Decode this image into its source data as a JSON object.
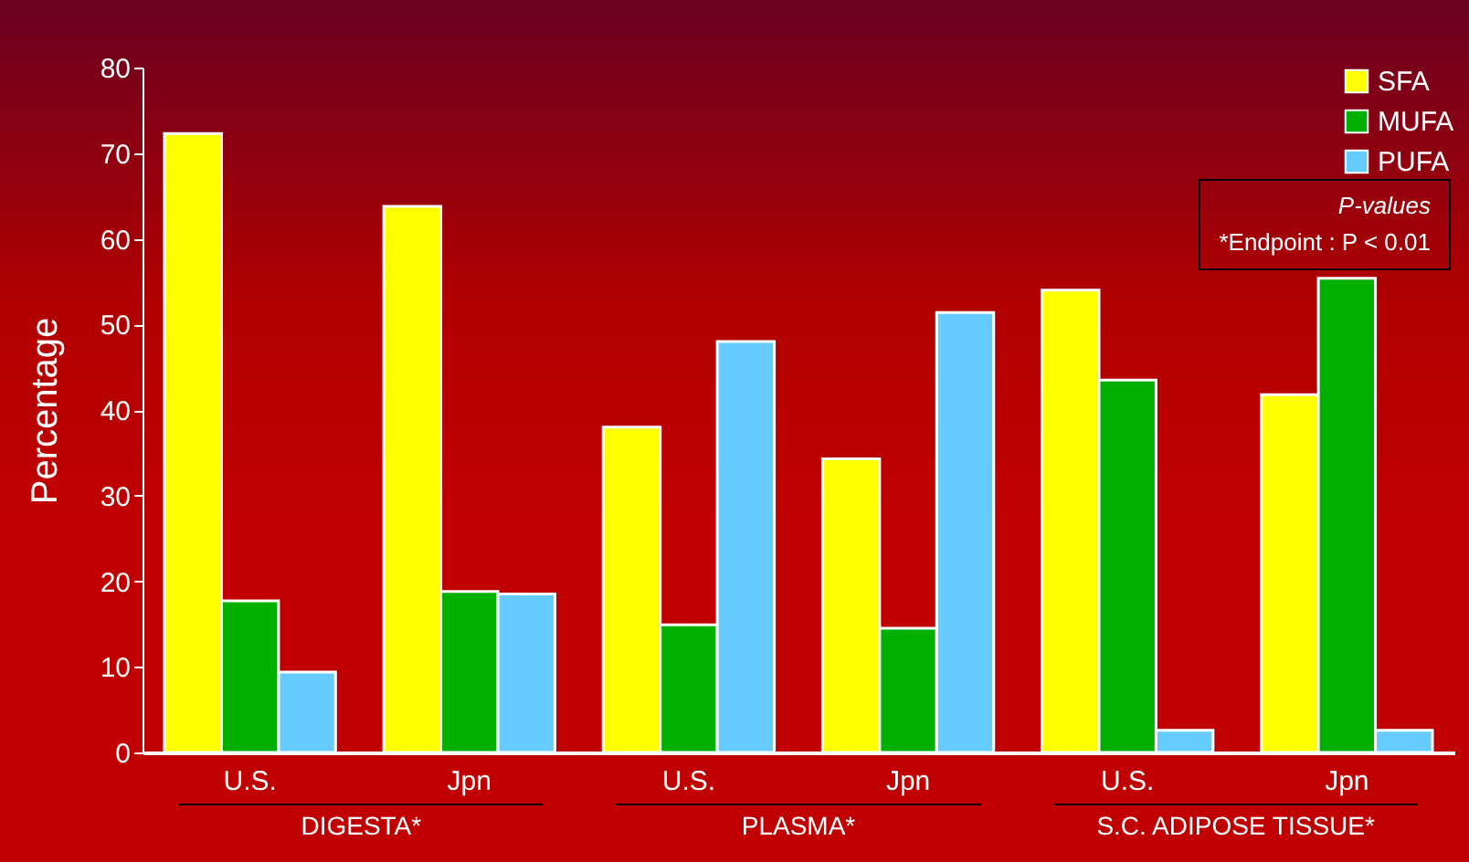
{
  "chart_data": {
    "type": "bar",
    "ylabel": "Percentage",
    "categories": [
      "U.S.",
      "Jpn",
      "U.S.",
      "Jpn",
      "U.S.",
      "Jpn"
    ],
    "series": [
      {
        "name": "SFA",
        "color": "#ffff00",
        "values": [
          72.3,
          63.8,
          38,
          34.3,
          54,
          41.8
        ]
      },
      {
        "name": "MUFA",
        "color": "#00b000",
        "values": [
          17.7,
          18.8,
          14.9,
          14.5,
          43.5,
          55.4
        ]
      },
      {
        "name": "PUFA",
        "color": "#66ccff",
        "values": [
          9.4,
          18.5,
          48,
          51.4,
          2.6,
          2.6
        ]
      }
    ],
    "ylim": [
      0,
      80
    ],
    "yticks": [
      0,
      10,
      20,
      30,
      40,
      50,
      60,
      70,
      80
    ],
    "legend": "top right",
    "annotations": [
      "DIGESTA*",
      "PLASMA*",
      "S.C. ADIPOSE TISSUE*",
      "P-values",
      "*Endpoint : P < 0.01"
    ]
  }
}
